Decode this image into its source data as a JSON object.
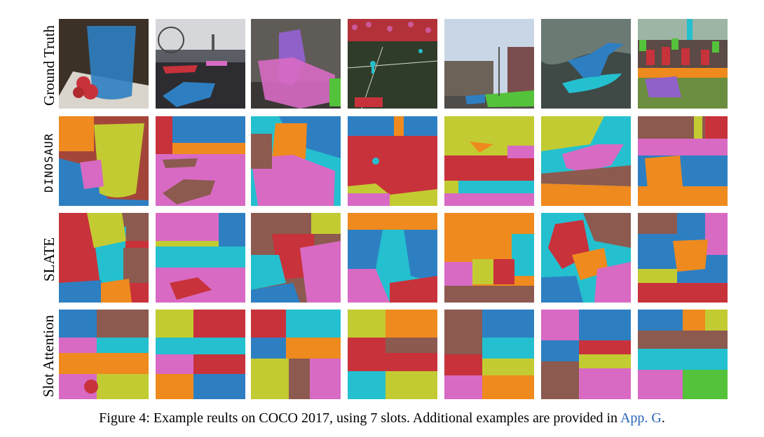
{
  "figure": {
    "row_labels": [
      "Ground Truth",
      "DINOSAUR",
      "SLATE",
      "Slot Attention"
    ],
    "caption_text": "Figure 4: Example reults on COCO 2017, using 7 slots. Additional examples are provided in ",
    "caption_link": "App. G",
    "caption_end": "."
  },
  "palette": {
    "blue": "#2e7fc2",
    "red": "#c8323b",
    "pink": "#d86ac4",
    "orange": "#ef8a1e",
    "teal": "#24c0cf",
    "olive": "#c3cb32",
    "green": "#54c23a",
    "brown": "#8c5a4f",
    "purple": "#9061c9"
  }
}
